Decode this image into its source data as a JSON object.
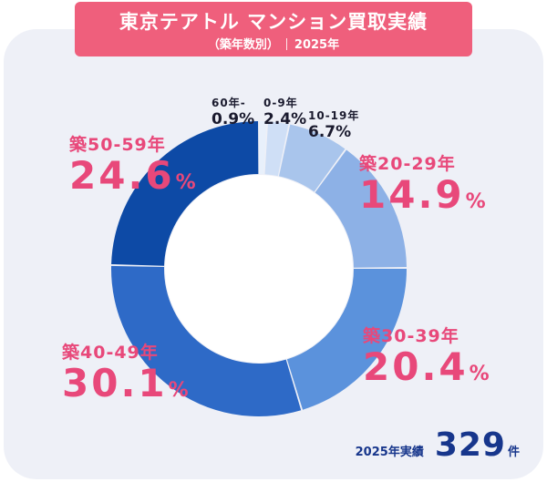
{
  "title": {
    "main": "東京テアトル マンション買取実績",
    "sub_left": "（築年数別）",
    "sub_right": "2025年"
  },
  "total": {
    "label": "2025年実績",
    "value": "329",
    "unit": "件"
  },
  "colors": {
    "label_pink": "#e8487a",
    "title_bg": "#ef5f7c",
    "total_text": "#17368c"
  },
  "chart_data": {
    "type": "pie",
    "title": "東京テアトル マンション買取実績",
    "subtitle": "（築年数別）2025年",
    "unit": "%",
    "categories": [
      "60年-",
      "0-9年",
      "10-19年",
      "築20-29年",
      "築30-39年",
      "築40-49年",
      "築50-59年"
    ],
    "values": [
      0.9,
      2.4,
      6.7,
      14.9,
      20.4,
      30.1,
      24.6
    ],
    "value_labels": [
      "0.9",
      "2.4",
      "6.7",
      "14.9",
      "20.4",
      "30.1",
      "24.6"
    ],
    "colors": [
      "#e8f0fb",
      "#cfdff6",
      "#a9c5ec",
      "#8db1e6",
      "#5b92dc",
      "#2e6ac7",
      "#0d4aa6"
    ]
  }
}
